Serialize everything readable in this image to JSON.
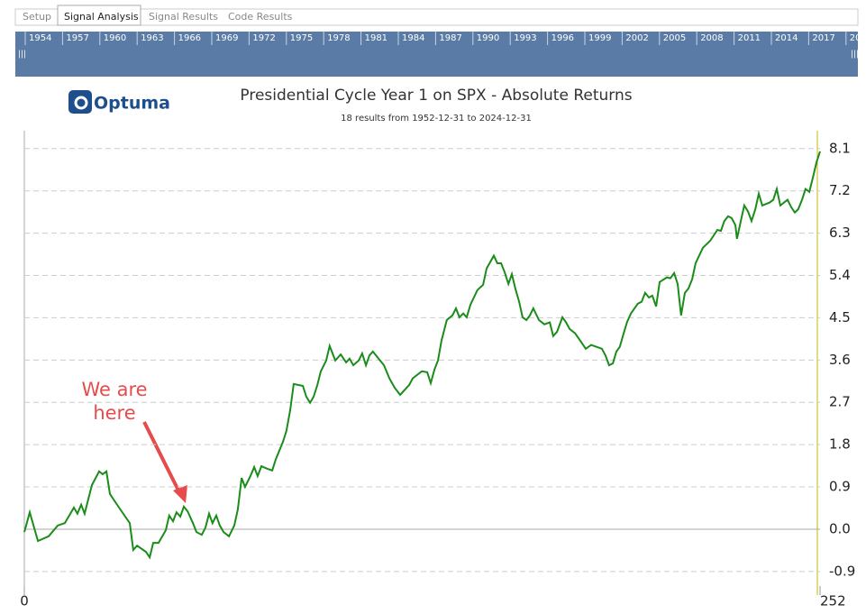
{
  "tabs": [
    "Setup",
    "Signal Analysis",
    "Signal Results",
    "Code Results"
  ],
  "timeline": {
    "years": [
      "1954",
      "1957",
      "1960",
      "1963",
      "1966",
      "1969",
      "1972",
      "1975",
      "1978",
      "1981",
      "1984",
      "1987",
      "1990",
      "1993",
      "1996",
      "1999",
      "2002",
      "2005",
      "2008",
      "2011",
      "2014",
      "2017",
      "20"
    ]
  },
  "logo": "Optuma",
  "chart_data": {
    "type": "line",
    "title": "Presidential Cycle Year 1 on SPX - Absolute Returns",
    "subtitle": "18 results from 1952-12-31 to 2024-12-31",
    "annotation": [
      "We are",
      "here"
    ],
    "x": [
      0,
      1.7,
      4.3,
      7.7,
      10.6,
      12.8,
      15.7,
      16.8,
      18.0,
      19.1,
      21.4,
      23.7,
      24.8,
      26.0,
      27.1,
      30.0,
      33.4,
      34.5,
      35.7,
      38.5,
      39.7,
      40.8,
      42.5,
      44.8,
      45.9,
      47.1,
      48.2,
      49.4,
      50.5,
      51.7,
      53.4,
      54.5,
      56.2,
      57.4,
      58.5,
      59.6,
      60.8,
      61.9,
      63.1,
      64.8,
      66.5,
      67.6,
      68.8,
      69.9,
      71.6,
      72.8,
      73.9,
      75.1,
      76.8,
      78.5,
      79.6,
      81.9,
      83.0,
      84.2,
      85.3,
      88.2,
      89.3,
      90.5,
      91.6,
      92.8,
      93.9,
      95.6,
      96.7,
      98.5,
      100.2,
      101.9,
      103.0,
      104.2,
      105.9,
      107.0,
      108.2,
      109.3,
      110.4,
      112.2,
      113.9,
      115.6,
      117.3,
      119.0,
      120.7,
      121.9,
      123.0,
      125.9,
      127.6,
      128.7,
      129.9,
      131.0,
      132.1,
      133.8,
      135.6,
      136.7,
      137.8,
      139.0,
      140.1,
      141.3,
      143.5,
      145.3,
      146.4,
      148.7,
      149.8,
      151.0,
      152.1,
      153.3,
      154.4,
      155.5,
      156.7,
      157.8,
      159.0,
      160.1,
      161.2,
      163.0,
      164.7,
      166.4,
      167.5,
      168.7,
      170.4,
      171.5,
      172.7,
      174.4,
      176.1,
      177.8,
      179.5,
      182.9,
      184.1,
      185.2,
      186.4,
      187.5,
      188.6,
      189.8,
      190.9,
      192.1,
      194.3,
      195.5,
      196.6,
      197.8,
      198.9,
      200.1,
      201.2,
      203.5,
      204.6,
      205.8,
      206.9,
      208.0,
      209.2,
      210.3,
      211.5,
      212.6,
      214.9,
      217.2,
      219.5,
      220.6,
      221.7,
      222.9,
      224.0,
      225.2,
      225.7,
      226.9,
      228.0,
      229.2,
      230.3,
      231.5,
      232.6,
      233.7,
      236.0,
      237.2,
      238.3,
      239.4,
      241.7,
      242.9,
      244.0,
      245.1,
      246.3,
      247.4,
      248.6,
      249.7,
      250.9,
      252.0
    ],
    "series": [
      {
        "color": "#1a8c1a",
        "values": [
          -0.06,
          0.36,
          -0.25,
          -0.15,
          0.08,
          0.13,
          0.46,
          0.33,
          0.52,
          0.33,
          0.94,
          1.23,
          1.17,
          1.23,
          0.75,
          0.46,
          0.13,
          -0.44,
          -0.35,
          -0.48,
          -0.6,
          -0.29,
          -0.29,
          -0.02,
          0.29,
          0.17,
          0.36,
          0.27,
          0.48,
          0.38,
          0.13,
          -0.06,
          -0.12,
          0.04,
          0.33,
          0.13,
          0.29,
          0.08,
          -0.06,
          -0.15,
          0.08,
          0.42,
          1.09,
          0.9,
          1.13,
          1.32,
          1.13,
          1.34,
          1.29,
          1.25,
          1.48,
          1.86,
          2.09,
          2.53,
          3.09,
          3.05,
          2.82,
          2.69,
          2.82,
          3.07,
          3.36,
          3.59,
          3.9,
          3.59,
          3.72,
          3.55,
          3.63,
          3.49,
          3.59,
          3.74,
          3.49,
          3.7,
          3.78,
          3.63,
          3.49,
          3.21,
          3.01,
          2.86,
          2.98,
          3.07,
          3.21,
          3.36,
          3.34,
          3.11,
          3.4,
          3.59,
          4.01,
          4.45,
          4.55,
          4.7,
          4.51,
          4.59,
          4.51,
          4.78,
          5.09,
          5.2,
          5.55,
          5.82,
          5.66,
          5.66,
          5.47,
          5.22,
          5.43,
          5.12,
          4.84,
          4.51,
          4.45,
          4.55,
          4.7,
          4.45,
          4.36,
          4.4,
          4.11,
          4.2,
          4.51,
          4.41,
          4.26,
          4.17,
          4.01,
          3.84,
          3.92,
          3.84,
          3.69,
          3.49,
          3.53,
          3.78,
          3.88,
          4.17,
          4.41,
          4.59,
          4.8,
          4.84,
          5.03,
          4.93,
          4.97,
          4.74,
          5.26,
          5.36,
          5.34,
          5.45,
          5.22,
          4.55,
          5.03,
          5.12,
          5.32,
          5.66,
          5.99,
          6.14,
          6.37,
          6.35,
          6.56,
          6.66,
          6.62,
          6.47,
          6.18,
          6.56,
          6.89,
          6.76,
          6.56,
          6.81,
          7.14,
          6.89,
          6.95,
          7.01,
          7.24,
          6.89,
          7.01,
          6.85,
          6.74,
          6.81,
          7.01,
          7.24,
          7.18,
          7.47,
          7.81,
          8.04
        ]
      }
    ],
    "xlim": [
      0,
      252
    ],
    "xticks": [
      0,
      252
    ],
    "ylim": [
      -1.21,
      8.48
    ],
    "yticks": [
      8.1,
      7.2,
      6.3,
      5.4,
      4.5,
      3.6,
      2.7,
      1.8,
      0.9,
      {
        "value": 0,
        "label": "0.0"
      },
      -0.9
    ],
    "grid": true
  }
}
